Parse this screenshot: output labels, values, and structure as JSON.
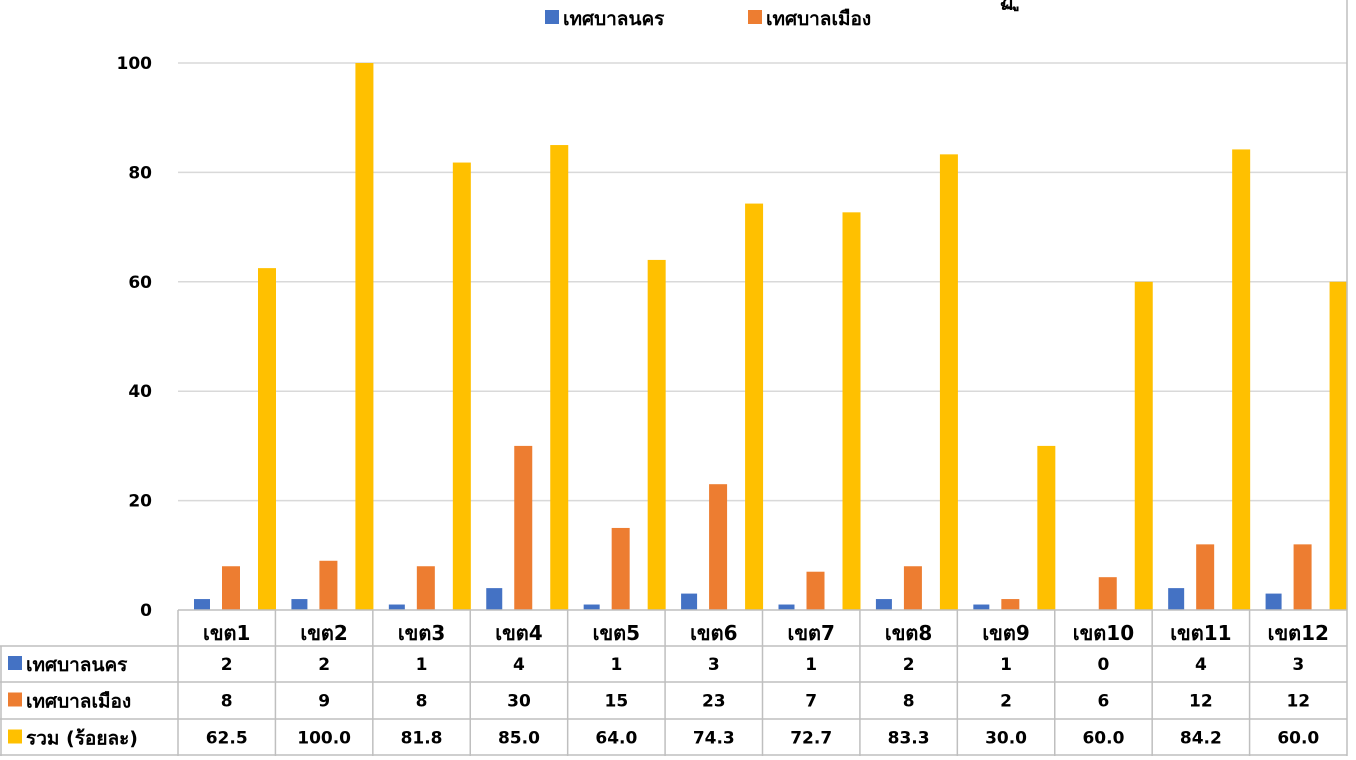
{
  "chart_data": {
    "type": "bar",
    "title_fragment": "ฏ ู",
    "categories": [
      "เขต1",
      "เขต2",
      "เขต3",
      "เขต4",
      "เขต5",
      "เขต6",
      "เขต7",
      "เขต8",
      "เขต9",
      "เขต10",
      "เขต11",
      "เขต12"
    ],
    "series": [
      {
        "name": "เทศบาลนคร",
        "color": "#4472C4",
        "values": [
          2,
          2,
          1,
          4,
          1,
          3,
          1,
          2,
          1,
          0,
          4,
          3
        ],
        "display": [
          "2",
          "2",
          "1",
          "4",
          "1",
          "3",
          "1",
          "2",
          "1",
          "0",
          "4",
          "3"
        ]
      },
      {
        "name": "เทศบาลเมือง",
        "color": "#ED7D31",
        "values": [
          8,
          9,
          8,
          30,
          15,
          23,
          7,
          8,
          2,
          6,
          12,
          12
        ],
        "display": [
          "8",
          "9",
          "8",
          "30",
          "15",
          "23",
          "7",
          "8",
          "2",
          "6",
          "12",
          "12"
        ]
      },
      {
        "name": "รวม (ร้อยละ)",
        "color": "#FFC000",
        "values": [
          62.5,
          100.0,
          81.8,
          85.0,
          64.0,
          74.3,
          72.7,
          83.3,
          30.0,
          60.0,
          84.2,
          60.0
        ],
        "display": [
          "62.5",
          "100.0",
          "81.8",
          "85.0",
          "64.0",
          "74.3",
          "72.7",
          "83.3",
          "30.0",
          "60.0",
          "84.2",
          "60.0"
        ]
      }
    ],
    "legend_series": [
      0,
      1
    ],
    "yticks": [
      "0",
      "20",
      "40",
      "60",
      "80",
      "100"
    ],
    "ylim": [
      0,
      100
    ],
    "grid": true,
    "legend_position": "top",
    "data_table": true
  }
}
